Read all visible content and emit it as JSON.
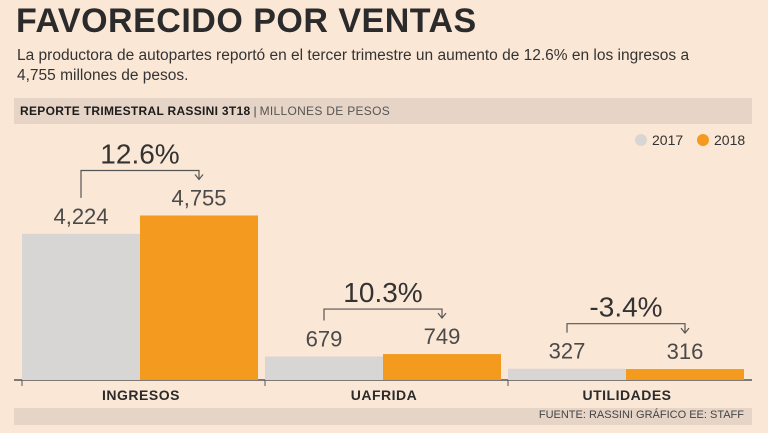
{
  "header": {
    "title": "FAVORECIDO POR VENTAS",
    "subtitle": "La productora de autopartes reportó en el tercer trimestre un aumento de 12.6% en los ingresos a 4,755 millones de pesos."
  },
  "report": {
    "title": "REPORTE TRIMESTRAL RASSINI 3T18",
    "separator": "|",
    "unit": "MILLONES DE PESOS"
  },
  "footer": {
    "source": "FUENTE: RASSINI GRÁFICO EE: STAFF"
  },
  "colors": {
    "2017": "#d8d6d4",
    "2018": "#f39a1f",
    "axis": "#555555",
    "bracket": "#555555"
  },
  "chart_data": {
    "type": "bar",
    "title": "REPORTE TRIMESTRAL RASSINI 3T18",
    "ylabel": "MILLONES DE PESOS",
    "xlabel": "",
    "categories": [
      "INGRESOS",
      "UAFRIDA",
      "UTILIDADES"
    ],
    "series": [
      {
        "name": "2017",
        "values": [
          4224,
          679,
          327
        ],
        "labels": [
          "4,224",
          "679",
          "327"
        ]
      },
      {
        "name": "2018",
        "values": [
          4755,
          749,
          316
        ],
        "labels": [
          "4,755",
          "749",
          "316"
        ]
      }
    ],
    "changes": [
      "12.6%",
      "10.3%",
      "-3.4%"
    ],
    "ylim": [
      0,
      5000
    ],
    "legend": "top-right"
  }
}
